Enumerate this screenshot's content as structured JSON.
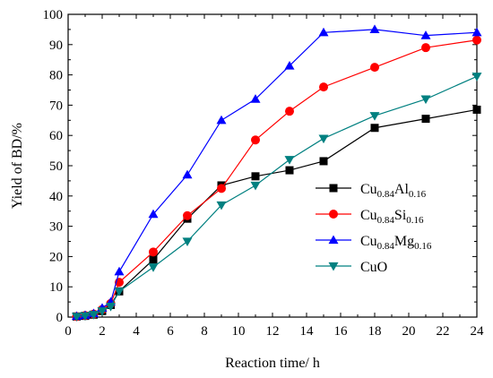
{
  "chart_data": {
    "type": "line",
    "xlabel": "Reaction time/ h",
    "ylabel": "Yield of BD/%",
    "xlim": [
      0,
      24
    ],
    "ylim": [
      0,
      100
    ],
    "x_ticks": [
      "0",
      "2",
      "4",
      "6",
      "8",
      "10",
      "12",
      "14",
      "16",
      "18",
      "20",
      "22",
      "24"
    ],
    "y_ticks": [
      "0",
      "10",
      "20",
      "30",
      "40",
      "50",
      "60",
      "70",
      "80",
      "90",
      "100"
    ],
    "grid": false,
    "legend_position": "right",
    "series": [
      {
        "name": "Cu0.84Al0.16",
        "legend": {
          "base": "Cu",
          "sub1": "0.84",
          "el2": "Al",
          "sub2": "0.16"
        },
        "color": "#000000",
        "marker": "square",
        "x": [
          0.5,
          1.0,
          1.5,
          2.0,
          2.5,
          3.0,
          5.0,
          7.0,
          9.0,
          11.0,
          13.0,
          15.0,
          18.0,
          21.0,
          24.0
        ],
        "y": [
          0.2,
          0.4,
          0.8,
          2.0,
          4.0,
          8.5,
          19.0,
          32.5,
          43.5,
          46.5,
          48.5,
          51.5,
          62.5,
          65.5,
          68.5
        ]
      },
      {
        "name": "Cu0.84Si0.16",
        "legend": {
          "base": "Cu",
          "sub1": "0.84",
          "el2": "Si",
          "sub2": "0.16"
        },
        "color": "#ff0000",
        "marker": "circle",
        "x": [
          0.5,
          1.0,
          1.5,
          2.0,
          2.5,
          3.0,
          5.0,
          7.0,
          9.0,
          11.0,
          13.0,
          15.0,
          18.0,
          21.0,
          24.0
        ],
        "y": [
          0.2,
          0.5,
          1.0,
          2.5,
          4.5,
          11.5,
          21.5,
          33.5,
          42.5,
          58.5,
          68.0,
          76.0,
          82.5,
          89.0,
          91.5
        ]
      },
      {
        "name": "Cu0.84Mg0.16",
        "legend": {
          "base": "Cu",
          "sub1": "0.84",
          "el2": "Mg",
          "sub2": "0.16"
        },
        "color": "#0000ff",
        "marker": "triangle-up",
        "x": [
          0.5,
          1.0,
          1.5,
          2.0,
          2.5,
          3.0,
          5.0,
          7.0,
          9.0,
          11.0,
          13.0,
          15.0,
          18.0,
          21.0,
          24.0
        ],
        "y": [
          0.3,
          0.6,
          1.2,
          3.0,
          5.0,
          15.0,
          34.0,
          47.0,
          65.0,
          72.0,
          83.0,
          94.0,
          95.0,
          93.0,
          94.0
        ]
      },
      {
        "name": "CuO",
        "legend": {
          "base": "CuO",
          "sub1": "",
          "el2": "",
          "sub2": ""
        },
        "color": "#008080",
        "marker": "triangle-down",
        "x": [
          0.5,
          1.0,
          1.5,
          2.0,
          2.5,
          3.0,
          5.0,
          7.0,
          9.0,
          11.0,
          13.0,
          15.0,
          18.0,
          21.0,
          24.0
        ],
        "y": [
          0.2,
          0.4,
          0.8,
          2.0,
          3.5,
          8.5,
          16.5,
          25.0,
          37.0,
          43.5,
          52.0,
          59.0,
          66.5,
          72.0,
          79.5
        ]
      }
    ]
  }
}
